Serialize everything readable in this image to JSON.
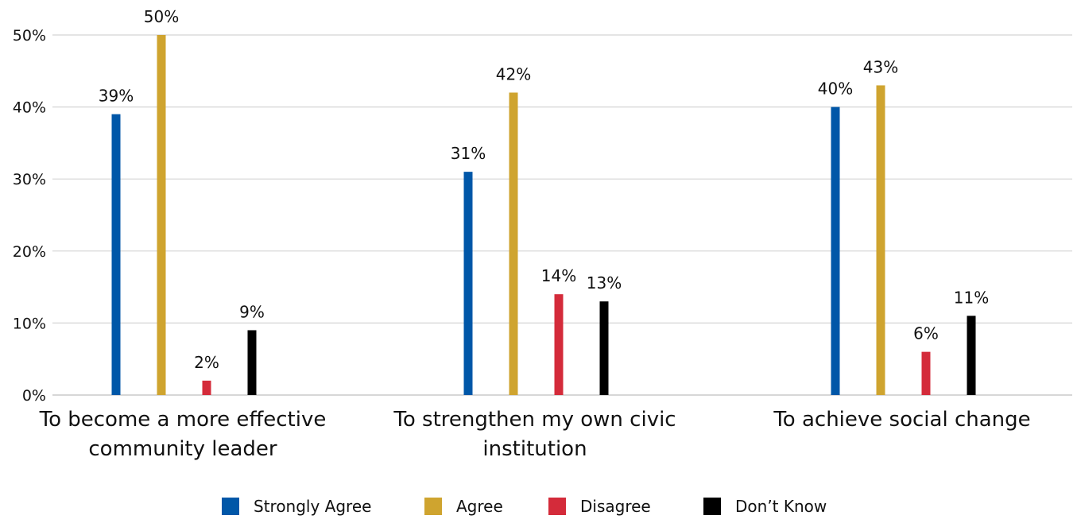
{
  "chart_data": {
    "type": "bar",
    "categories": [
      "To become a more effective community leader",
      "To strengthen my own civic institution",
      "To achieve social change"
    ],
    "category_lines": [
      [
        "To become a more effective",
        "community leader"
      ],
      [
        "To strengthen my own civic",
        "institution"
      ],
      [
        "To achieve social change"
      ]
    ],
    "series": [
      {
        "name": "Strongly Agree",
        "color": "#0057a8",
        "values": [
          39,
          31,
          40
        ],
        "labels": [
          "39%",
          "31%",
          "40%"
        ]
      },
      {
        "name": "Agree",
        "color": "#cfa42f",
        "values": [
          50,
          42,
          43
        ],
        "labels": [
          "50%",
          "42%",
          "43%"
        ]
      },
      {
        "name": "Disagree",
        "color": "#d42b3a",
        "values": [
          2,
          14,
          6
        ],
        "labels": [
          "2%",
          "14%",
          "6%"
        ]
      },
      {
        "name": "Don’t Know",
        "color": "#000000",
        "values": [
          9,
          13,
          11
        ],
        "labels": [
          "9%",
          "13%",
          "11%"
        ]
      }
    ],
    "yticks": [
      0,
      10,
      20,
      30,
      40,
      50
    ],
    "ytick_labels": [
      "0%",
      "10%",
      "20%",
      "30%",
      "40%",
      "50%"
    ],
    "ylim": [
      0,
      50
    ],
    "grid": true,
    "legend_position": "bottom"
  }
}
